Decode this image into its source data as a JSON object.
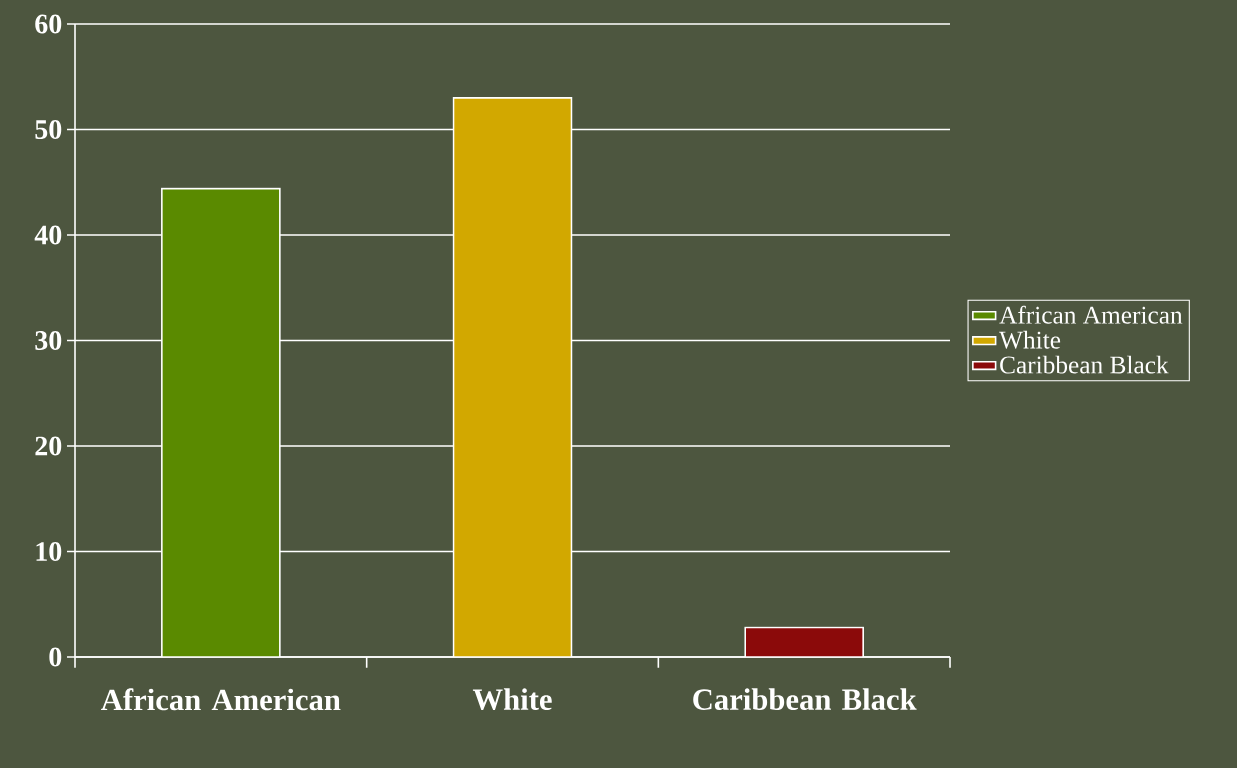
{
  "chart_data": {
    "type": "bar",
    "categories": [
      "African American",
      "White",
      "Caribbean Black"
    ],
    "series": [
      {
        "name": "African American",
        "color": "#5a8a00",
        "values": [
          44.4,
          null,
          null
        ]
      },
      {
        "name": "White",
        "color": "#d2a800",
        "values": [
          null,
          53.0,
          null
        ]
      },
      {
        "name": "Caribbean Black",
        "color": "#8b0a0a",
        "values": [
          null,
          null,
          2.8
        ]
      }
    ],
    "ylim": [
      0,
      60
    ],
    "yticks": [
      0,
      10,
      20,
      30,
      40,
      50,
      60
    ],
    "grid": "y",
    "legend": "right"
  }
}
